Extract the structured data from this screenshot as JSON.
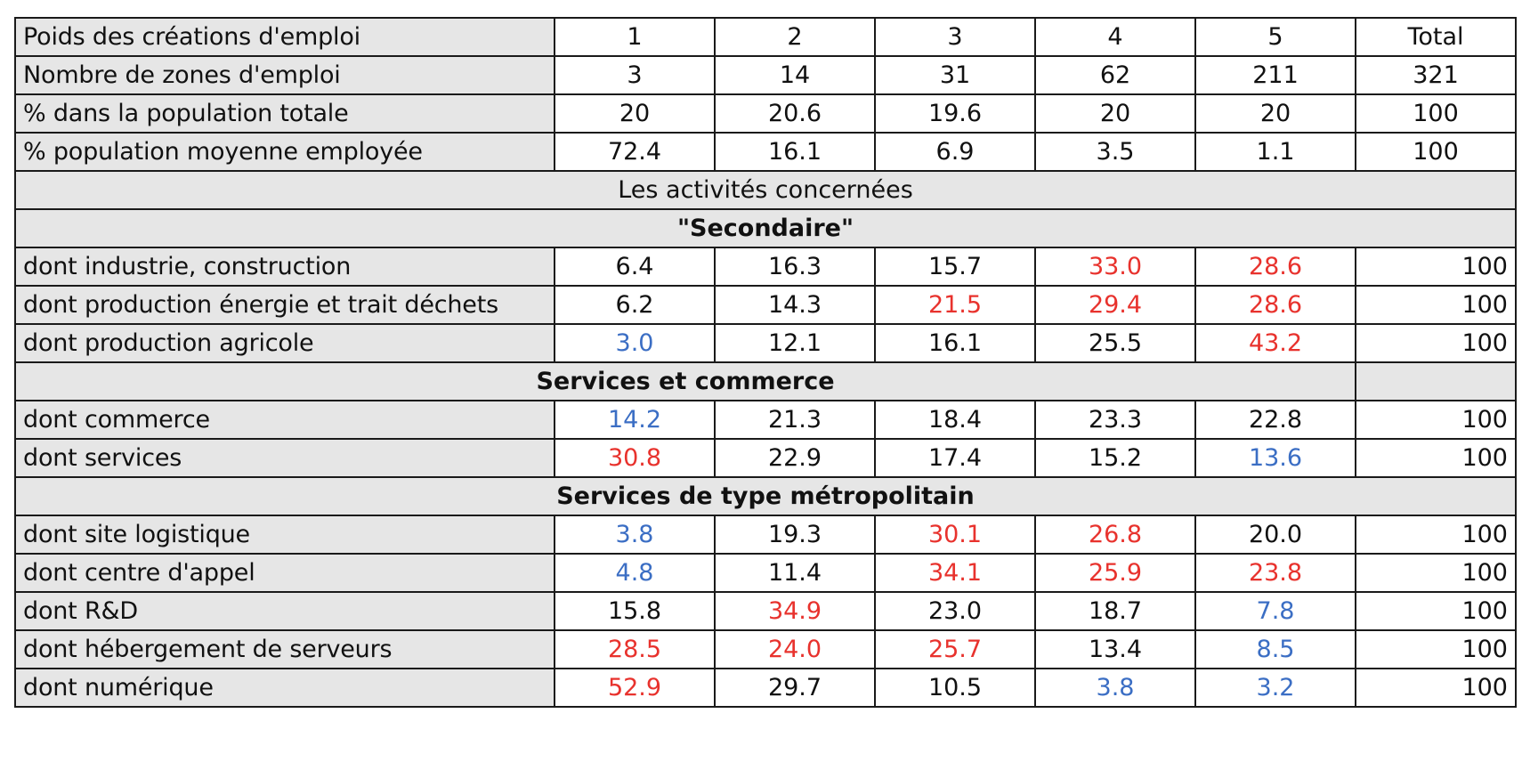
{
  "header_rows": [
    {
      "label": "Poids des créations d'emploi",
      "values": [
        "1",
        "2",
        "3",
        "4",
        "5"
      ],
      "total": "Total"
    },
    {
      "label": "Nombre de zones d'emploi",
      "values": [
        "3",
        "14",
        "31",
        "62",
        "211"
      ],
      "total": "321"
    },
    {
      "label": "% dans la population totale",
      "values": [
        "20",
        "20.6",
        "19.6",
        "20",
        "20"
      ],
      "total": "100"
    },
    {
      "label": "% population moyenne employée",
      "values": [
        "72.4",
        "16.1",
        "6.9",
        "3.5",
        "1.1"
      ],
      "total": "100"
    }
  ],
  "section_activities": "Les activités concernées",
  "section_secondaire": {
    "title": "\"Secondaire\"",
    "rows": [
      {
        "label": "dont industrie, construction",
        "values": [
          "6.4",
          "16.3",
          "15.7",
          "33.0",
          "28.6"
        ],
        "colors": [
          "",
          "",
          "",
          "red",
          "red"
        ],
        "total": "100"
      },
      {
        "label": "dont production énergie et trait déchets",
        "values": [
          "6.2",
          "14.3",
          "21.5",
          "29.4",
          "28.6"
        ],
        "colors": [
          "",
          "",
          "red",
          "red",
          "red"
        ],
        "total": "100"
      },
      {
        "label": "dont production agricole",
        "values": [
          "3.0",
          "12.1",
          "16.1",
          "25.5",
          "43.2"
        ],
        "colors": [
          "blue",
          "",
          "",
          "",
          "red"
        ],
        "total": "100"
      }
    ]
  },
  "section_services": {
    "title": "Services et commerce",
    "rows": [
      {
        "label": "dont commerce",
        "values": [
          "14.2",
          "21.3",
          "18.4",
          "23.3",
          "22.8"
        ],
        "colors": [
          "blue",
          "",
          "",
          "",
          ""
        ],
        "total": "100"
      },
      {
        "label": "dont services",
        "values": [
          "30.8",
          "22.9",
          "17.4",
          "15.2",
          "13.6"
        ],
        "colors": [
          "red",
          "",
          "",
          "",
          "blue"
        ],
        "total": "100"
      }
    ]
  },
  "section_metro": {
    "title": "Services de type métropolitain",
    "rows": [
      {
        "label": "dont site logistique",
        "values": [
          "3.8",
          "19.3",
          "30.1",
          "26.8",
          "20.0"
        ],
        "colors": [
          "blue",
          "",
          "red",
          "red",
          ""
        ],
        "total": "100"
      },
      {
        "label": "dont centre d'appel",
        "values": [
          "4.8",
          "11.4",
          "34.1",
          "25.9",
          "23.8"
        ],
        "colors": [
          "blue",
          "",
          "red",
          "red",
          "red"
        ],
        "total": "100"
      },
      {
        "label": "dont R&D",
        "values": [
          "15.8",
          "34.9",
          "23.0",
          "18.7",
          "7.8"
        ],
        "colors": [
          "",
          "red",
          "",
          "",
          "blue"
        ],
        "total": "100"
      },
      {
        "label": "dont hébergement de serveurs",
        "values": [
          "28.5",
          "24.0",
          "25.7",
          "13.4",
          "8.5"
        ],
        "colors": [
          "red",
          "red",
          "red",
          "",
          "blue"
        ],
        "total": "100"
      },
      {
        "label": "dont numérique",
        "values": [
          "52.9",
          "29.7",
          "10.5",
          "3.8",
          "3.2"
        ],
        "colors": [
          "red",
          "",
          "",
          "blue",
          "blue"
        ],
        "total": "100"
      }
    ]
  },
  "colors": {
    "red": "#e8322d",
    "blue": "#3b6ec4",
    "label_bg": "#e6e6e6",
    "border": "#1a1a1a"
  }
}
